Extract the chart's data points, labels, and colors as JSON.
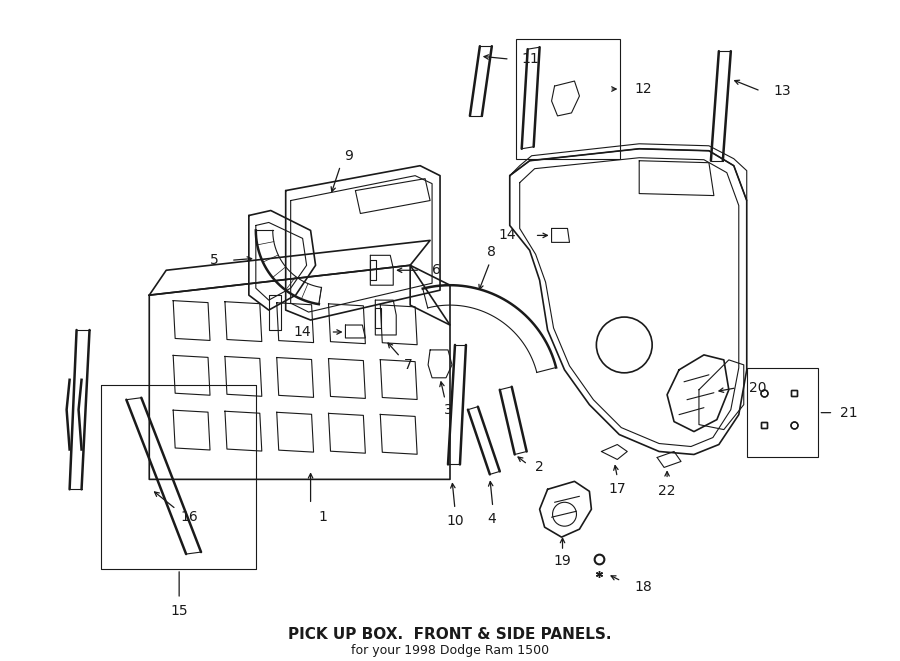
{
  "title": "PICK UP BOX.  FRONT & SIDE PANELS.",
  "subtitle": "for your 1998 Dodge Ram 1500",
  "bg_color": "#ffffff",
  "line_color": "#1a1a1a",
  "figsize": [
    9.0,
    6.61
  ],
  "dpi": 100
}
